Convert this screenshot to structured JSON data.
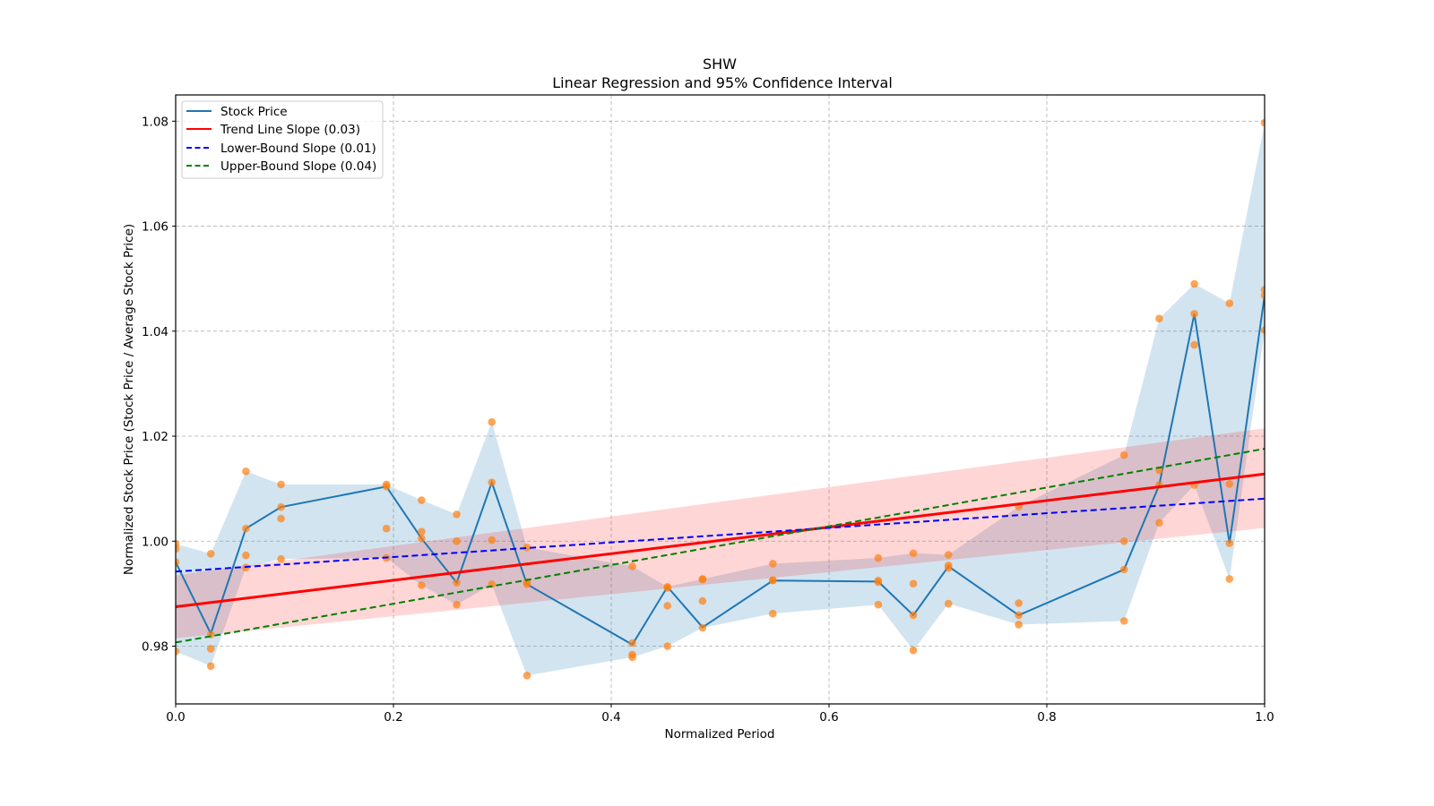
{
  "chart_data": {
    "type": "line",
    "title": "SHW",
    "subtitle": "Linear Regression and 95% Confidence Interval",
    "xlabel": "Normalized Period",
    "ylabel": "Normalized Stock Price (Stock Price / Average Stock Price)",
    "xlim": [
      0.0,
      1.0
    ],
    "ylim": [
      0.969,
      1.085
    ],
    "xticks": [
      "0.0",
      "0.2",
      "0.4",
      "0.6",
      "0.8",
      "1.0"
    ],
    "xtick_values": [
      0.0,
      0.2,
      0.4,
      0.6,
      0.8,
      1.0
    ],
    "yticks": [
      "0.98",
      "1.00",
      "1.02",
      "1.04",
      "1.06",
      "1.08"
    ],
    "ytick_values": [
      0.98,
      1.0,
      1.02,
      1.04,
      1.06,
      1.08
    ],
    "grid": true,
    "legend_position": "top-left",
    "legend": [
      {
        "label": "Stock Price",
        "color": "#1f77b4",
        "style": "solid"
      },
      {
        "label": "Trend Line Slope (0.03)",
        "color": "#ff0000",
        "style": "solid"
      },
      {
        "label": "Lower-Bound Slope (0.01)",
        "color": "#0000ff",
        "style": "dashed"
      },
      {
        "label": "Upper-Bound Slope (0.04)",
        "color": "#008000",
        "style": "dashed"
      }
    ],
    "colors": {
      "stock_line": "#1f77b4",
      "stock_band": "#1f77b4",
      "scatter": "#ff7f0e",
      "trend": "#ff0000",
      "trend_band": "#ff9999",
      "lower": "#0000ff",
      "upper": "#008000"
    },
    "stock_price": {
      "x_index_denominator": 31,
      "groups": [
        {
          "k": 0,
          "line": 0.996,
          "points": [
            0.9995,
            0.9985,
            0.996,
            0.979
          ]
        },
        {
          "k": 1,
          "line": 0.9824,
          "points": [
            0.9976,
            0.9822,
            0.9795,
            0.9762
          ]
        },
        {
          "k": 2,
          "line": 1.0024,
          "points": [
            1.0133,
            1.0024,
            0.9973,
            0.995
          ]
        },
        {
          "k": 3,
          "line": 1.0065,
          "points": [
            1.0108,
            1.0065,
            1.0043,
            0.9966
          ]
        },
        {
          "k": 6,
          "line": 1.0104,
          "points": [
            1.0108,
            1.0104,
            1.0024,
            0.9968
          ]
        },
        {
          "k": 7,
          "line": 1.0005,
          "points": [
            1.0078,
            1.0018,
            1.0005,
            0.9916
          ]
        },
        {
          "k": 8,
          "line": 0.9921,
          "points": [
            1.0051,
            1.0,
            0.9921,
            0.9879
          ]
        },
        {
          "k": 9,
          "line": 1.0112,
          "points": [
            1.0227,
            1.0112,
            1.0002,
            0.9918
          ]
        },
        {
          "k": 10,
          "line": 0.9918,
          "points": [
            0.9988,
            0.9922,
            0.9918,
            0.9744
          ]
        },
        {
          "k": 13,
          "line": 0.9803,
          "points": [
            0.9952,
            0.9806,
            0.9784,
            0.9779
          ]
        },
        {
          "k": 14,
          "line": 0.9913,
          "points": [
            0.9913,
            0.9911,
            0.9877,
            0.98
          ]
        },
        {
          "k": 15,
          "line": 0.9836,
          "points": [
            0.9928,
            0.9927,
            0.9886,
            0.9835
          ]
        },
        {
          "k": 17,
          "line": 0.9925,
          "points": [
            0.9957,
            0.9926,
            0.9925,
            0.9862
          ]
        },
        {
          "k": 20,
          "line": 0.9923,
          "points": [
            0.9968,
            0.9925,
            0.9922,
            0.9879
          ]
        },
        {
          "k": 21,
          "line": 0.9859,
          "points": [
            0.9977,
            0.9919,
            0.9859,
            0.9792
          ]
        },
        {
          "k": 22,
          "line": 0.9952,
          "points": [
            0.9974,
            0.9954,
            0.9949,
            0.9881
          ]
        },
        {
          "k": 24,
          "line": 0.9859,
          "points": [
            1.0066,
            0.9882,
            0.9859,
            0.9841
          ]
        },
        {
          "k": 27,
          "line": 0.9946,
          "points": [
            1.0164,
            1.0,
            0.9946,
            0.9848
          ]
        },
        {
          "k": 28,
          "line": 1.0107,
          "points": [
            1.0424,
            1.0135,
            1.0107,
            1.0035
          ]
        },
        {
          "k": 29,
          "line": 1.0433,
          "points": [
            1.049,
            1.0433,
            1.0374,
            1.0107
          ]
        },
        {
          "k": 30,
          "line": 0.9996,
          "points": [
            1.0453,
            1.0109,
            0.9996,
            0.9928
          ]
        },
        {
          "k": 31,
          "line": 1.0468,
          "points": [
            1.0797,
            1.0479,
            1.0468,
            1.0402
          ]
        }
      ]
    },
    "trend_line": {
      "x": [
        0.0,
        1.0
      ],
      "y": [
        0.9875,
        1.0128
      ],
      "band_low": [
        0.9815,
        1.0025
      ],
      "band_high": [
        0.9935,
        1.0215
      ]
    },
    "lower_bound_line": {
      "x": [
        0.0,
        1.0
      ],
      "y": [
        0.9942,
        1.0081
      ]
    },
    "upper_bound_line": {
      "x": [
        0.0,
        1.0
      ],
      "y": [
        0.9807,
        1.0176
      ]
    }
  }
}
